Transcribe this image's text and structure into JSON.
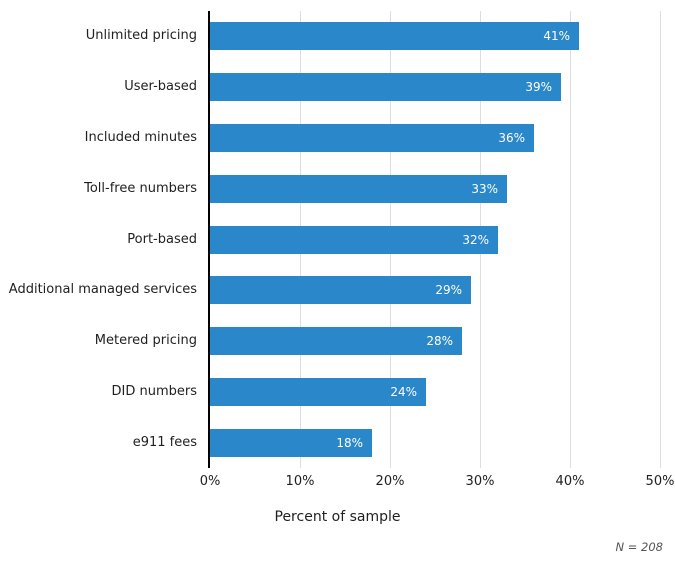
{
  "chart_data": {
    "type": "bar",
    "orientation": "horizontal",
    "title": "",
    "categories": [
      "Unlimited pricing",
      "User-based",
      "Included minutes",
      "Toll-free numbers",
      "Port-based",
      "Additional managed services",
      "Metered pricing",
      "DID numbers",
      "e911 fees"
    ],
    "values": [
      41,
      39,
      36,
      33,
      32,
      29,
      28,
      24,
      18
    ],
    "value_labels": [
      "41%",
      "39%",
      "36%",
      "33%",
      "32%",
      "29%",
      "28%",
      "24%",
      "18%"
    ],
    "xlabel": "Percent of sample",
    "x_tick_labels": [
      "0%",
      "10%",
      "20%",
      "30%",
      "40%",
      "50%"
    ],
    "x_tick_values": [
      0,
      10,
      20,
      30,
      40,
      50
    ],
    "xlim": [
      0,
      50
    ],
    "note": "N = 208",
    "legend": "none",
    "grid": "vertical-gridlines-every-10pct",
    "colors": {
      "bar": "#2A87C9",
      "gridline": "#DDDDDD",
      "axis_line": "#000000",
      "category_label": "#1F1F1F",
      "tick_label": "#1F1F1F",
      "value_label": "#FFFFFF",
      "note": "#555555",
      "background": "#FFFFFF"
    }
  }
}
